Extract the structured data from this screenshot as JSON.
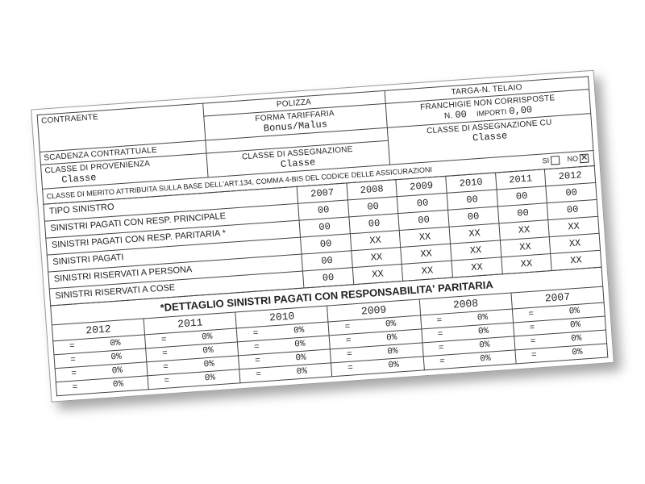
{
  "header": {
    "contraente": "CONTRAENTE",
    "polizza": "POLIZZA",
    "targa": "TARGA-N. TELAIO",
    "scadenza": "SCADENZA CONTRATTUALE",
    "forma_tariffaria_lbl": "FORMA TARIFFARIA",
    "forma_tariffaria_val": "Bonus/Malus",
    "franchigie_lbl": "FRANCHIGIE NON CORRISPOSTE",
    "franchigie_n_lbl": "N.",
    "franchigie_n_val": "00",
    "franchigie_importi_lbl": "IMPORTI",
    "franchigie_importi_val": "0,00",
    "classe_prov_lbl": "CLASSE DI PROVENIENZA",
    "classe_prov_val": "Classe",
    "classe_ass_lbl": "CLASSE DI ASSEGNAZIONE",
    "classe_ass_val": "Classe",
    "classe_cu_lbl": "CLASSE DI ASSEGNAZIONE CU",
    "classe_cu_val": "Classe",
    "merito_note": "CLASSE DI MERITO ATTRIBUITA SULLA BASE DELL'ART.134, COMMA 4-BIS DEL CODICE DELLE ASSICURAZIONI",
    "si": "SI",
    "no": "NO"
  },
  "table": {
    "col0": "TIPO SINISTRO",
    "years": [
      "2007",
      "2008",
      "2009",
      "2010",
      "2011",
      "2012"
    ],
    "rows": [
      {
        "label": "SINISTRI PAGATI CON RESP. PRINCIPALE",
        "cells": [
          "00",
          "00",
          "00",
          "00",
          "00",
          "00"
        ]
      },
      {
        "label": "SINISTRI PAGATI CON RESP. PARITARIA *",
        "cells": [
          "00",
          "00",
          "00",
          "00",
          "00",
          "00"
        ]
      },
      {
        "label": "SINISTRI PAGATI",
        "cells": [
          "00",
          "XX",
          "XX",
          "XX",
          "XX",
          "XX"
        ]
      },
      {
        "label": "SINISTRI RISERVATI A PERSONA",
        "cells": [
          "00",
          "XX",
          "XX",
          "XX",
          "XX",
          "XX"
        ]
      },
      {
        "label": "SINISTRI RISERVATI A COSE",
        "cells": [
          "00",
          "XX",
          "XX",
          "XX",
          "XX",
          "XX"
        ]
      }
    ]
  },
  "dettaglio": {
    "title": "*DETTAGLIO SINISTRI PAGATI CON RESPONSABILITA' PARITARIA",
    "years": [
      "2012",
      "2011",
      "2010",
      "2009",
      "2008",
      "2007"
    ],
    "rows": [
      [
        "0%",
        "0%",
        "0%",
        "0%",
        "0%",
        "0%"
      ],
      [
        "0%",
        "0%",
        "0%",
        "0%",
        "0%",
        "0%"
      ],
      [
        "0%",
        "0%",
        "0%",
        "0%",
        "0%",
        "0%"
      ],
      [
        "0%",
        "0%",
        "0%",
        "0%",
        "0%",
        "0%"
      ]
    ]
  }
}
